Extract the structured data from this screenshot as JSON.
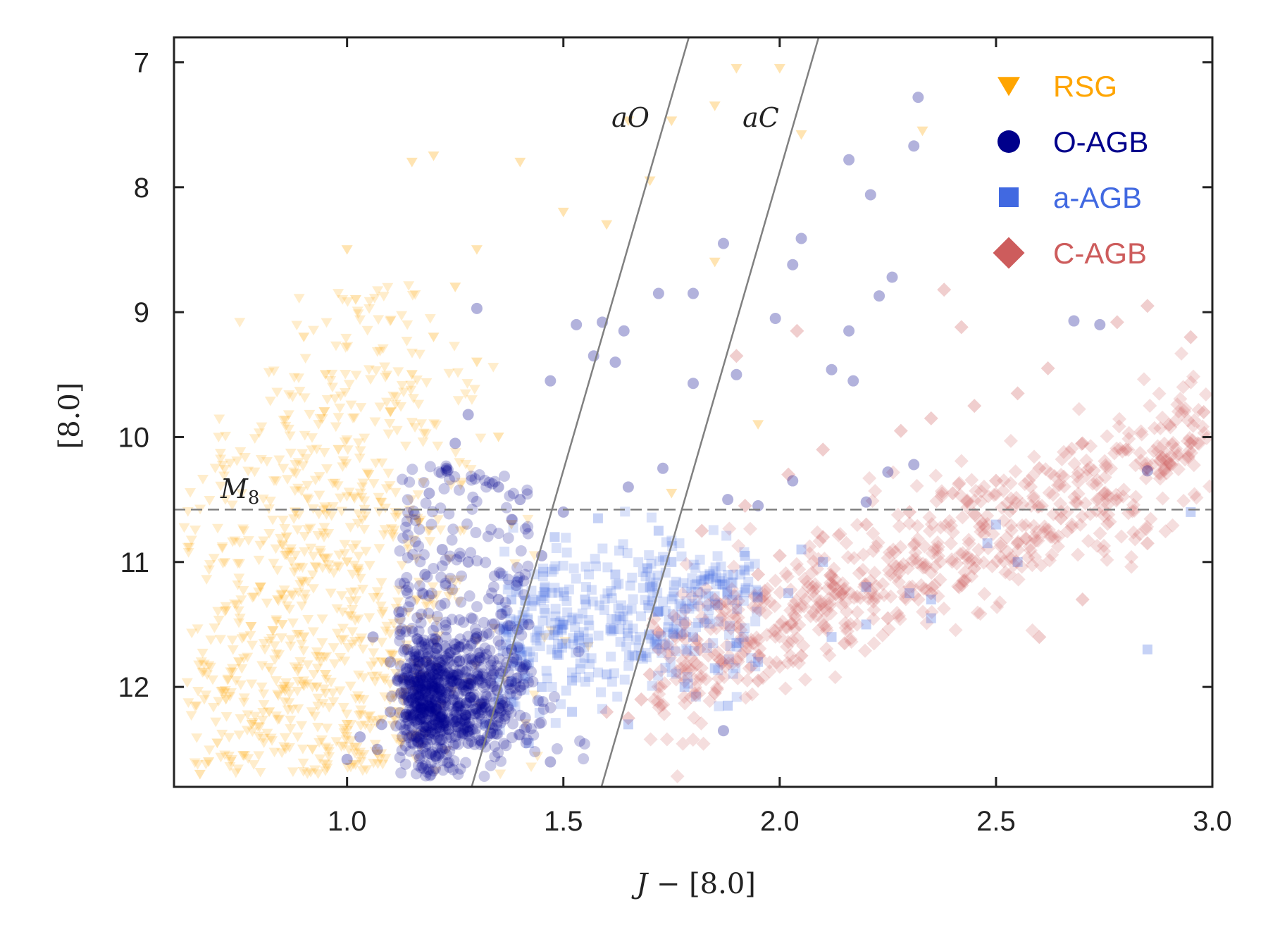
{
  "chart_data": {
    "type": "scatter",
    "title": "",
    "xlabel": "J - [8.0]",
    "ylabel": "[8.0]",
    "xlim": [
      0.6,
      3.0
    ],
    "ylim": [
      12.8,
      6.8
    ],
    "y_inverted": true,
    "grid": false,
    "legend_position": "top-right",
    "x_ticks": [
      "1.0",
      "1.5",
      "2.0",
      "2.5",
      "3.0"
    ],
    "y_ticks": [
      "7",
      "8",
      "9",
      "10",
      "11",
      "12"
    ],
    "x_tick_values": [
      1.0,
      1.5,
      2.0,
      2.5,
      3.0
    ],
    "y_tick_values": [
      7,
      8,
      9,
      10,
      11,
      12
    ],
    "annotations": [
      {
        "text": "aO",
        "x": 1.65,
        "y": 7.43
      },
      {
        "text": "aC",
        "x": 1.94,
        "y": 7.43
      },
      {
        "text": "M",
        "subscript": "8",
        "x": 0.76,
        "y": 10.48
      }
    ],
    "reference_lines": [
      {
        "name": "aO",
        "style": "solid",
        "color": "#808080",
        "x1": 1.288,
        "y1": 12.8,
        "x2": 1.79,
        "y2": 6.8
      },
      {
        "name": "aC",
        "style": "solid",
        "color": "#808080",
        "x1": 1.588,
        "y1": 12.8,
        "x2": 2.09,
        "y2": 6.8
      },
      {
        "name": "M8",
        "style": "dashed",
        "color": "#808080",
        "y": 10.58
      }
    ],
    "series": [
      {
        "name": "RSG",
        "marker": "triangle-down",
        "color": "#FFA500",
        "summary": {
          "x_range": [
            0.64,
            2.36
          ],
          "y_range": [
            6.9,
            12.75
          ],
          "dense_core": {
            "x": [
              0.75,
              1.1
            ],
            "y": [
              11.0,
              12.6
            ]
          }
        },
        "points": [
          [
            1.9,
            7.05
          ],
          [
            2.0,
            7.05
          ],
          [
            1.65,
            7.47
          ],
          [
            1.75,
            7.47
          ],
          [
            1.85,
            7.35
          ],
          [
            2.05,
            7.58
          ],
          [
            1.15,
            7.8
          ],
          [
            1.2,
            7.75
          ],
          [
            1.6,
            8.3
          ],
          [
            1.7,
            7.95
          ],
          [
            1.85,
            8.6
          ],
          [
            1.5,
            8.2
          ],
          [
            1.4,
            7.8
          ],
          [
            1.3,
            8.5
          ],
          [
            1.0,
            8.5
          ],
          [
            0.95,
            9.5
          ],
          [
            0.9,
            9.2
          ],
          [
            0.88,
            10.6
          ],
          [
            0.8,
            11.2
          ],
          [
            0.75,
            11.8
          ],
          [
            0.72,
            12.1
          ],
          [
            0.68,
            12.6
          ],
          [
            0.66,
            12.7
          ],
          [
            0.7,
            12.45
          ],
          [
            0.78,
            12.3
          ],
          [
            0.85,
            11.5
          ],
          [
            0.9,
            11.6
          ],
          [
            0.95,
            11.9
          ],
          [
            1.0,
            11.0
          ],
          [
            1.05,
            10.3
          ],
          [
            1.1,
            9.8
          ],
          [
            1.15,
            9.5
          ],
          [
            1.2,
            9.2
          ],
          [
            1.25,
            8.8
          ],
          [
            1.3,
            9.4
          ],
          [
            1.35,
            10.0
          ],
          [
            1.38,
            10.7
          ],
          [
            1.0,
            12.3
          ],
          [
            0.92,
            12.5
          ],
          [
            0.82,
            12.2
          ],
          [
            1.08,
            11.8
          ],
          [
            1.12,
            12.2
          ],
          [
            2.33,
            7.55
          ],
          [
            1.95,
            9.9
          ],
          [
            1.75,
            10.45
          ],
          [
            1.02,
            8.9
          ],
          [
            0.98,
            10.1
          ],
          [
            0.86,
            10.8
          ],
          [
            0.93,
            12.0
          ],
          [
            0.76,
            12.55
          ]
        ]
      },
      {
        "name": "O-AGB",
        "marker": "circle",
        "color": "#00008B",
        "summary": {
          "x_range": [
            0.99,
            2.86
          ],
          "y_range": [
            7.28,
            12.6
          ],
          "dense_core": {
            "x": [
              1.05,
              1.4
            ],
            "y": [
              11.5,
              12.5
            ]
          }
        },
        "points": [
          [
            2.32,
            7.28
          ],
          [
            2.31,
            7.67
          ],
          [
            2.16,
            7.78
          ],
          [
            2.21,
            8.06
          ],
          [
            2.05,
            8.41
          ],
          [
            1.87,
            8.45
          ],
          [
            2.03,
            8.62
          ],
          [
            1.72,
            8.85
          ],
          [
            1.8,
            8.85
          ],
          [
            2.26,
            8.72
          ],
          [
            2.23,
            8.87
          ],
          [
            1.3,
            8.97
          ],
          [
            1.59,
            9.08
          ],
          [
            1.64,
            9.15
          ],
          [
            1.53,
            9.1
          ],
          [
            1.62,
            9.4
          ],
          [
            1.57,
            9.35
          ],
          [
            1.99,
            9.05
          ],
          [
            2.16,
            9.15
          ],
          [
            2.17,
            9.55
          ],
          [
            2.12,
            9.46
          ],
          [
            1.9,
            9.5
          ],
          [
            1.8,
            9.57
          ],
          [
            1.47,
            9.55
          ],
          [
            1.28,
            9.82
          ],
          [
            1.25,
            10.05
          ],
          [
            1.35,
            10.4
          ],
          [
            1.19,
            10.45
          ],
          [
            1.23,
            10.25
          ],
          [
            1.4,
            10.5
          ],
          [
            1.65,
            10.4
          ],
          [
            1.73,
            10.25
          ],
          [
            1.88,
            10.5
          ],
          [
            1.95,
            10.55
          ],
          [
            2.03,
            10.35
          ],
          [
            2.25,
            10.28
          ],
          [
            2.31,
            10.22
          ],
          [
            2.2,
            10.52
          ],
          [
            1.87,
            12.35
          ],
          [
            2.85,
            10.27
          ],
          [
            2.74,
            9.1
          ],
          [
            2.68,
            9.07
          ],
          [
            1.47,
            12.6
          ],
          [
            1.0,
            12.58
          ],
          [
            1.03,
            12.4
          ],
          [
            1.07,
            12.5
          ],
          [
            1.1,
            12.2
          ],
          [
            1.15,
            12.1
          ],
          [
            1.2,
            11.9
          ],
          [
            1.25,
            11.7
          ],
          [
            1.3,
            11.6
          ],
          [
            1.1,
            11.8
          ],
          [
            1.12,
            11.4
          ],
          [
            1.18,
            11.1
          ],
          [
            1.22,
            10.9
          ],
          [
            1.28,
            11.0
          ],
          [
            1.35,
            11.3
          ],
          [
            1.38,
            11.7
          ],
          [
            1.4,
            12.0
          ],
          [
            1.33,
            12.3
          ],
          [
            1.28,
            12.45
          ],
          [
            1.22,
            12.5
          ],
          [
            1.16,
            12.4
          ],
          [
            1.08,
            12.3
          ],
          [
            1.06,
            11.6
          ],
          [
            1.14,
            11.7
          ],
          [
            1.26,
            12.15
          ],
          [
            1.36,
            12.15
          ],
          [
            1.42,
            11.5
          ],
          [
            1.45,
            10.95
          ],
          [
            1.5,
            10.6
          ]
        ]
      },
      {
        "name": "a-AGB",
        "marker": "square",
        "color": "#4169E1",
        "summary": {
          "x_range": [
            1.3,
            2.99
          ],
          "y_range": [
            10.55,
            12.5
          ],
          "dense_core": {
            "x": [
              1.35,
              1.8
            ],
            "y": [
              11.2,
              12.2
            ]
          }
        },
        "points": [
          [
            2.95,
            10.6
          ],
          [
            2.85,
            11.7
          ],
          [
            2.35,
            11.3
          ],
          [
            2.35,
            11.45
          ],
          [
            2.2,
            11.2
          ],
          [
            2.2,
            11.5
          ],
          [
            2.1,
            11.0
          ],
          [
            2.05,
            10.9
          ],
          [
            1.95,
            11.8
          ],
          [
            1.9,
            11.65
          ],
          [
            2.5,
            10.7
          ],
          [
            2.55,
            11.0
          ],
          [
            2.48,
            10.85
          ],
          [
            1.4,
            11.7
          ],
          [
            1.45,
            12.0
          ],
          [
            1.5,
            11.5
          ],
          [
            1.55,
            11.3
          ],
          [
            1.6,
            11.9
          ],
          [
            1.65,
            12.3
          ],
          [
            1.7,
            11.2
          ],
          [
            1.75,
            11.0
          ],
          [
            1.8,
            11.6
          ],
          [
            1.85,
            11.85
          ],
          [
            1.35,
            12.1
          ],
          [
            1.32,
            12.3
          ],
          [
            1.42,
            12.45
          ],
          [
            1.52,
            12.2
          ],
          [
            1.62,
            11.1
          ],
          [
            1.72,
            10.75
          ],
          [
            1.58,
            10.65
          ],
          [
            1.48,
            10.8
          ],
          [
            1.38,
            11.3
          ],
          [
            1.68,
            11.75
          ],
          [
            1.78,
            12.0
          ],
          [
            1.88,
            12.15
          ],
          [
            1.92,
            10.95
          ],
          [
            2.02,
            11.25
          ],
          [
            2.12,
            11.6
          ],
          [
            2.3,
            11.25
          ],
          [
            1.52,
            11.95
          ]
        ]
      },
      {
        "name": "C-AGB",
        "marker": "diamond",
        "color": "#CD5C5C",
        "summary": {
          "x_range": [
            1.55,
            3.0
          ],
          "y_range": [
            8.75,
            12.3
          ],
          "dense_core": {
            "x": [
              2.0,
              3.0
            ],
            "y": [
              9.5,
              11.2
            ]
          }
        },
        "points": [
          [
            2.38,
            8.82
          ],
          [
            2.42,
            9.12
          ],
          [
            2.78,
            9.08
          ],
          [
            2.85,
            8.95
          ],
          [
            2.95,
            9.2
          ],
          [
            2.98,
            9.8
          ],
          [
            2.9,
            9.9
          ],
          [
            2.8,
            10.1
          ],
          [
            2.7,
            10.05
          ],
          [
            2.6,
            10.25
          ],
          [
            2.5,
            10.35
          ],
          [
            2.4,
            10.45
          ],
          [
            2.3,
            10.6
          ],
          [
            2.2,
            10.7
          ],
          [
            2.1,
            10.8
          ],
          [
            2.0,
            10.95
          ],
          [
            1.95,
            11.1
          ],
          [
            1.85,
            11.3
          ],
          [
            1.78,
            11.5
          ],
          [
            1.72,
            11.7
          ],
          [
            1.7,
            11.9
          ],
          [
            1.68,
            12.1
          ],
          [
            1.65,
            12.25
          ],
          [
            1.85,
            12.05
          ],
          [
            1.95,
            11.95
          ],
          [
            2.05,
            11.75
          ],
          [
            2.15,
            11.65
          ],
          [
            2.25,
            11.45
          ],
          [
            2.35,
            11.25
          ],
          [
            2.45,
            11.05
          ],
          [
            2.55,
            10.85
          ],
          [
            2.65,
            10.65
          ],
          [
            2.75,
            10.45
          ],
          [
            2.85,
            10.25
          ],
          [
            2.95,
            10.05
          ],
          [
            2.62,
            9.45
          ],
          [
            2.55,
            9.65
          ],
          [
            2.45,
            9.75
          ],
          [
            2.35,
            9.85
          ],
          [
            2.28,
            9.95
          ],
          [
            2.1,
            10.1
          ],
          [
            2.02,
            10.3
          ],
          [
            1.92,
            10.55
          ],
          [
            1.82,
            10.75
          ],
          [
            1.6,
            12.2
          ],
          [
            1.9,
            9.35
          ],
          [
            2.04,
            9.15
          ],
          [
            2.85,
            10.85
          ],
          [
            2.6,
            11.6
          ],
          [
            2.7,
            11.3
          ]
        ]
      }
    ]
  }
}
